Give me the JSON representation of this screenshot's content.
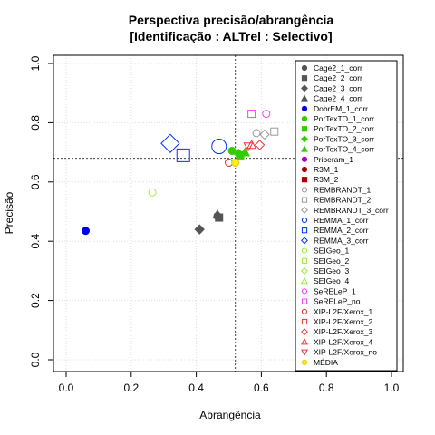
{
  "chart_data": {
    "type": "scatter",
    "title": "Perspectiva precisão/abrangência",
    "subtitle": "[Identificação : ALTrel : Selectivo]",
    "xlabel": "Abrangência",
    "ylabel": "Precisão",
    "xlim": [
      0,
      1
    ],
    "ylim": [
      0,
      1
    ],
    "xticks": [
      "0.0",
      "0.2",
      "0.4",
      "0.6",
      "0.8",
      "1.0"
    ],
    "yticks": [
      "0.0",
      "0.2",
      "0.4",
      "0.6",
      "0.8",
      "1.0"
    ],
    "grid": true,
    "legend_position": "right",
    "reference_lines": {
      "x": 0.52,
      "y": 0.68
    },
    "series": [
      {
        "name": "Cage2_1_corr",
        "marker": "circle",
        "color": "#555555",
        "filled": true,
        "points": [
          [
            0.465,
            0.485
          ]
        ]
      },
      {
        "name": "Cage2_2_corr",
        "marker": "square",
        "color": "#555555",
        "filled": true,
        "points": [
          [
            0.47,
            0.48
          ]
        ]
      },
      {
        "name": "Cage2_3_corr",
        "marker": "diamond",
        "color": "#555555",
        "filled": true,
        "points": [
          [
            0.41,
            0.44
          ]
        ]
      },
      {
        "name": "Cage2_4_corr",
        "marker": "triangle",
        "color": "#555555",
        "filled": true,
        "points": [
          [
            0.465,
            0.49
          ]
        ]
      },
      {
        "name": "DobrEM_1_corr",
        "marker": "circle",
        "color": "#0000ee",
        "filled": true,
        "points": [
          [
            0.06,
            0.435
          ]
        ]
      },
      {
        "name": "PorTexTO_1_corr",
        "marker": "circle",
        "color": "#33cc00",
        "filled": true,
        "points": [
          [
            0.51,
            0.705
          ]
        ]
      },
      {
        "name": "PorTexTO_2_corr",
        "marker": "square",
        "color": "#33cc00",
        "filled": true,
        "points": [
          [
            0.535,
            0.69
          ]
        ]
      },
      {
        "name": "PorTexTO_3_corr",
        "marker": "diamond",
        "color": "#33cc00",
        "filled": true,
        "points": [
          [
            0.53,
            0.695
          ]
        ]
      },
      {
        "name": "PorTexTO_4_corr",
        "marker": "triangle",
        "color": "#33cc00",
        "filled": true,
        "points": [
          [
            0.55,
            0.7
          ]
        ]
      },
      {
        "name": "Priberam_1",
        "marker": "circle",
        "color": "#aa00cc",
        "filled": true,
        "points": []
      },
      {
        "name": "R3M_1",
        "marker": "circle",
        "color": "#aa0000",
        "filled": true,
        "points": []
      },
      {
        "name": "R3M_2",
        "marker": "square",
        "color": "#aa0000",
        "filled": true,
        "points": []
      },
      {
        "name": "REMBRANDT_1",
        "marker": "circle",
        "color": "#999999",
        "filled": false,
        "points": [
          [
            0.585,
            0.765
          ]
        ]
      },
      {
        "name": "REMBRANDT_2",
        "marker": "square",
        "color": "#999999",
        "filled": false,
        "points": [
          [
            0.64,
            0.77
          ]
        ]
      },
      {
        "name": "REMBRANDT_3_corr",
        "marker": "diamond",
        "color": "#999999",
        "filled": false,
        "points": [
          [
            0.61,
            0.76
          ]
        ]
      },
      {
        "name": "REMMA_1_corr",
        "marker": "circle",
        "color": "#0033ff",
        "filled": false,
        "points": [
          [
            0.47,
            0.72
          ]
        ]
      },
      {
        "name": "REMMA_2_corr",
        "marker": "square",
        "color": "#0033ff",
        "filled": false,
        "points": [
          [
            0.36,
            0.69
          ]
        ]
      },
      {
        "name": "REMMA_3_corr",
        "marker": "diamond",
        "color": "#0033ff",
        "filled": false,
        "points": [
          [
            0.32,
            0.73
          ]
        ]
      },
      {
        "name": "SEIGeo_1",
        "marker": "circle",
        "color": "#99ee33",
        "filled": false,
        "points": [
          [
            0.265,
            0.565
          ]
        ]
      },
      {
        "name": "SEIGeo_2",
        "marker": "square",
        "color": "#99ee33",
        "filled": false,
        "points": []
      },
      {
        "name": "SEIGeo_3",
        "marker": "diamond",
        "color": "#99ee33",
        "filled": false,
        "points": []
      },
      {
        "name": "SEIGeo_4",
        "marker": "triangle",
        "color": "#99ee33",
        "filled": false,
        "points": []
      },
      {
        "name": "SeRELeP_1",
        "marker": "circle",
        "color": "#ee44ee",
        "filled": false,
        "points": [
          [
            0.615,
            0.83
          ]
        ]
      },
      {
        "name": "SeRELeP_no",
        "marker": "square",
        "color": "#ee44ee",
        "filled": false,
        "points": [
          [
            0.57,
            0.83
          ]
        ]
      },
      {
        "name": "XIP-L2F/Xerox_1",
        "marker": "circle",
        "color": "#ee3333",
        "filled": false,
        "points": [
          [
            0.5,
            0.665
          ]
        ]
      },
      {
        "name": "XIP-L2F/Xerox_2",
        "marker": "square",
        "color": "#ee3333",
        "filled": false,
        "points": []
      },
      {
        "name": "XIP-L2F/Xerox_3",
        "marker": "diamond",
        "color": "#ee3333",
        "filled": false,
        "points": [
          [
            0.595,
            0.725
          ]
        ]
      },
      {
        "name": "XIP-L2F/Xerox_4",
        "marker": "triangle",
        "color": "#ee3333",
        "filled": false,
        "points": [
          [
            0.57,
            0.725
          ]
        ]
      },
      {
        "name": "XIP-L2F/Xerox_no",
        "marker": "triangle-down",
        "color": "#ee3333",
        "filled": false,
        "points": [
          [
            0.56,
            0.72
          ]
        ]
      },
      {
        "name": "MÉDIA",
        "marker": "circle",
        "color": "#ffee22",
        "filled": true,
        "points": [
          [
            0.52,
            0.665
          ]
        ]
      }
    ]
  },
  "colors": {
    "grid": "#dddddd",
    "reference_line": "#444444",
    "box": "#000000"
  }
}
